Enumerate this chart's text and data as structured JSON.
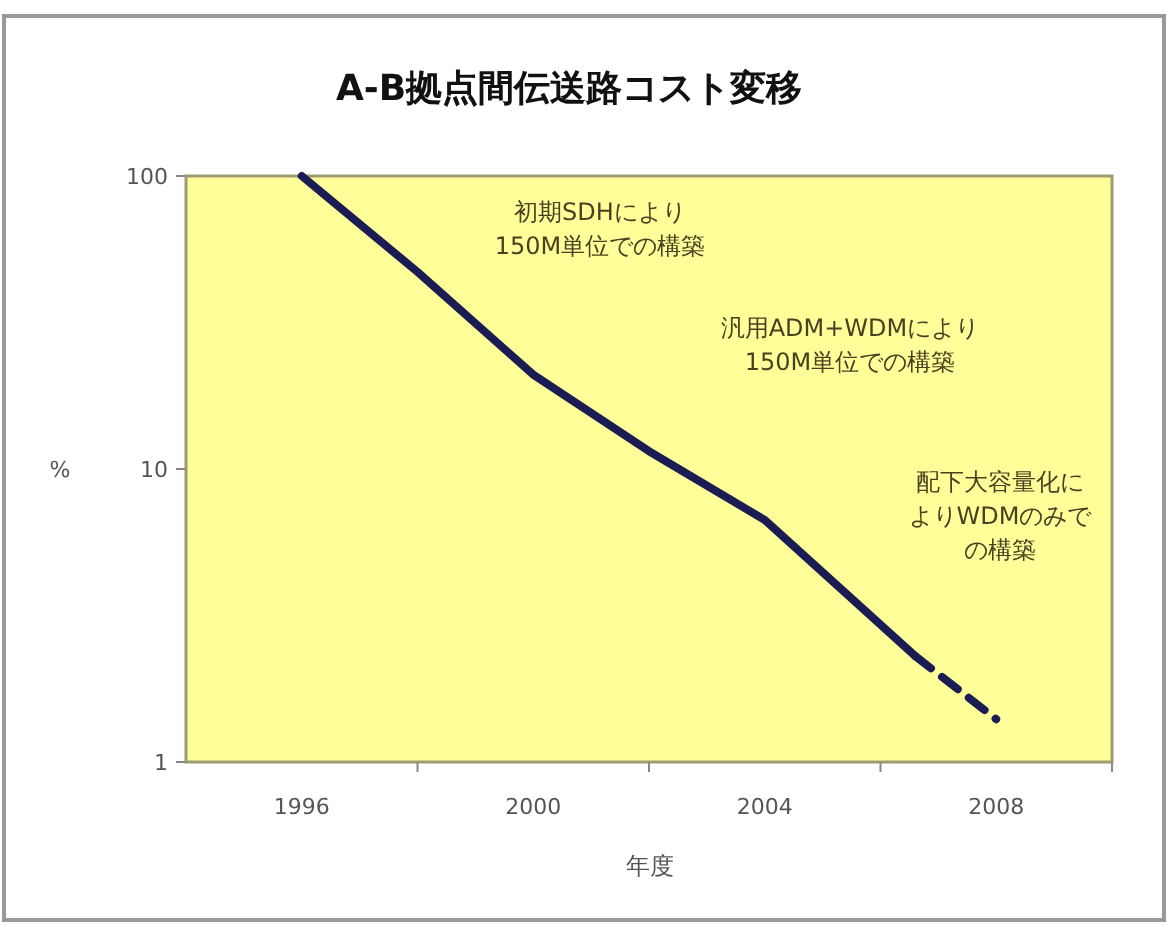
{
  "chart_data": {
    "type": "line",
    "title": "A-B拠点間伝送路コスト変移",
    "xlabel": "年度",
    "ylabel": "%",
    "log": "y",
    "xlim": [
      1994,
      2010
    ],
    "xticks": [
      {
        "value": 1996,
        "label": "1996"
      },
      {
        "value": 1998,
        "label": null
      },
      {
        "value": 2000,
        "label": "2000"
      },
      {
        "value": 2002,
        "label": null
      },
      {
        "value": 2004,
        "label": "2004"
      },
      {
        "value": 2006,
        "label": null
      },
      {
        "value": 2008,
        "label": "2008"
      },
      {
        "value": 2010,
        "label": null
      }
    ],
    "ylim": [
      1,
      100
    ],
    "yticks": [
      1,
      10,
      100
    ],
    "grid": false,
    "series": [
      {
        "color": "#1c1c55",
        "line_style": "solid",
        "x": [
          1996,
          1998,
          2000,
          2002,
          2004,
          2006.6
        ],
        "values": [
          100,
          47,
          21,
          11.5,
          6.7,
          2.3
        ]
      },
      {
        "color": "#1c1c55",
        "line_style": "dashed",
        "x": [
          2006.6,
          2008
        ],
        "values": [
          2.3,
          1.4
        ]
      }
    ],
    "annotations": [
      "初期SDHにより150M単位での構築",
      "汎用ADM+WDMにより150M単位での構築",
      "配下大容量化によりWDMのみでの構築"
    ]
  }
}
